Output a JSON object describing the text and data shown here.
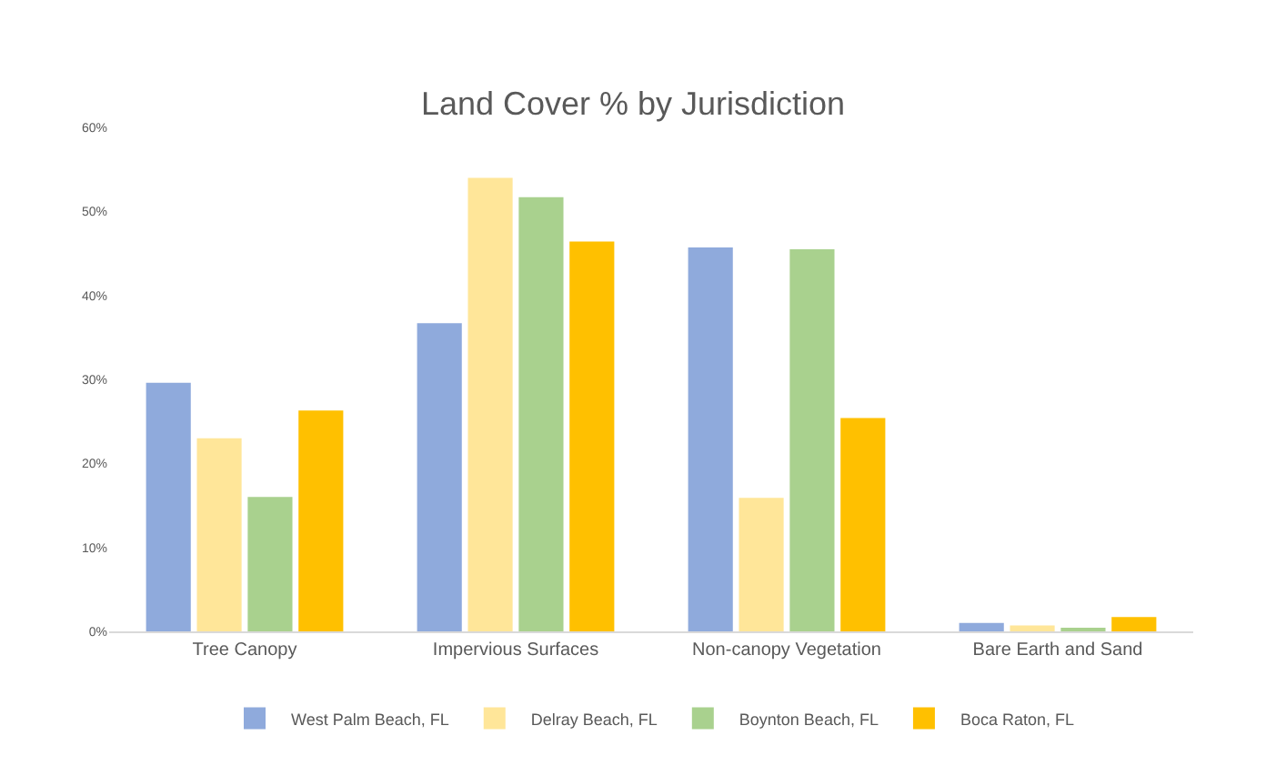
{
  "chart_data": {
    "type": "bar",
    "title": "Land Cover % by Jurisdiction",
    "categories": [
      "Tree Canopy",
      "Impervious Surfaces",
      "Non-canopy Vegetation",
      "Bare Earth and Sand"
    ],
    "series": [
      {
        "name": "West Palm Beach, FL",
        "color": "#8faadc",
        "values": [
          29.6,
          36.7,
          45.7,
          1.0
        ]
      },
      {
        "name": "Delray Beach, FL",
        "color": "#ffe699",
        "values": [
          23.0,
          54.0,
          15.9,
          0.7
        ]
      },
      {
        "name": "Boynton Beach, FL",
        "color": "#a9d18e",
        "values": [
          16.0,
          51.7,
          45.5,
          0.3
        ]
      },
      {
        "name": "Boca Raton, FL",
        "color": "#ffc000",
        "values": [
          26.3,
          46.4,
          25.4,
          1.7
        ]
      }
    ],
    "ylim": [
      0,
      60
    ],
    "yticks": [
      {
        "value": 0,
        "label": "0%"
      },
      {
        "value": 10,
        "label": "10%"
      },
      {
        "value": 20,
        "label": "20%"
      },
      {
        "value": 30,
        "label": "30%"
      },
      {
        "value": 40,
        "label": "40%"
      },
      {
        "value": 50,
        "label": "50%"
      },
      {
        "value": 60,
        "label": "60%"
      }
    ],
    "grid": false,
    "legend": "bottom"
  }
}
